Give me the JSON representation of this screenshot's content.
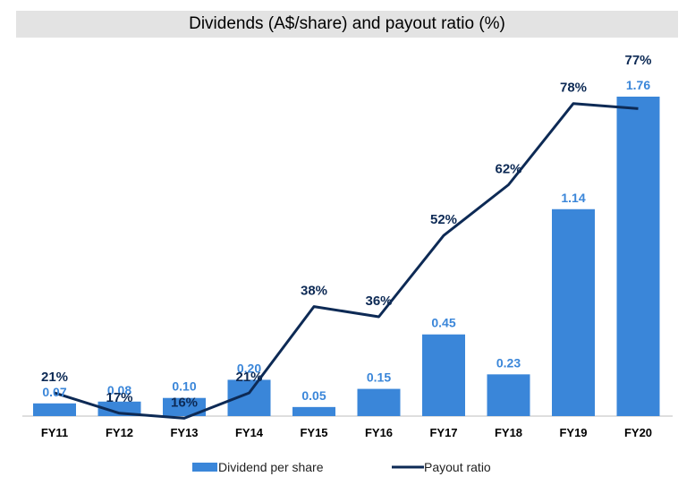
{
  "colors": {
    "bar": "#3a86d9",
    "line": "#0d2a55",
    "title_bg": "#e3e3e3",
    "axis": "#bdbdbd"
  },
  "chart_data": {
    "type": "bar",
    "title": "Dividends (A$/share) and payout ratio (%)",
    "categories": [
      "FY11",
      "FY12",
      "FY13",
      "FY14",
      "FY15",
      "FY16",
      "FY17",
      "FY18",
      "FY19",
      "FY20"
    ],
    "series": [
      {
        "name": "Dividend per share",
        "type": "bar",
        "values": [
          0.07,
          0.08,
          0.1,
          0.2,
          0.05,
          0.15,
          0.45,
          0.23,
          1.14,
          1.76
        ],
        "labels": [
          "0.07",
          "0.08",
          "0.10",
          "0.20",
          "0.05",
          "0.15",
          "0.45",
          "0.23",
          "1.14",
          "1.76"
        ]
      },
      {
        "name": "Payout ratio",
        "type": "line",
        "values": [
          21,
          17,
          16,
          21,
          38,
          36,
          52,
          62,
          78,
          77
        ],
        "labels": [
          "21%",
          "17%",
          "16%",
          "21%",
          "38%",
          "36%",
          "52%",
          "62%",
          "78%",
          "77%"
        ]
      }
    ],
    "legend": {
      "position": "bottom",
      "entries": [
        "Dividend per share",
        "Payout ratio"
      ]
    },
    "grid": false
  }
}
